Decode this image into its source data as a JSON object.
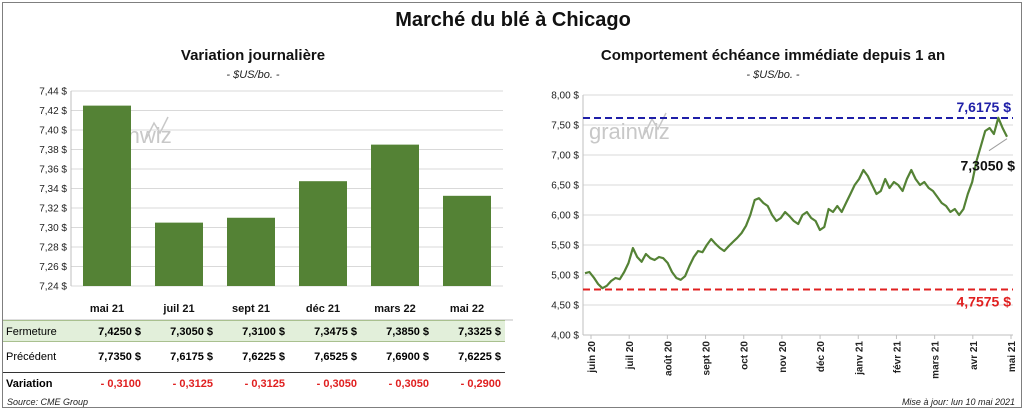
{
  "title": "Marché du blé à Chicago",
  "left_panel": {
    "title": "Variation journalière",
    "unit": "- $US/bo. -"
  },
  "right_panel": {
    "title": "Comportement  échéance immédiate depuis 1 an",
    "unit": "- $US/bo. -"
  },
  "watermark": "grainwiz",
  "table": {
    "rows": [
      {
        "label": "Fermeture",
        "values": [
          "7,4250 $",
          "7,3050 $",
          "7,3100 $",
          "7,3475 $",
          "7,3850 $",
          "7,3325 $"
        ]
      },
      {
        "label": "Précédent",
        "values": [
          "7,7350 $",
          "7,6175 $",
          "7,6225 $",
          "7,6525 $",
          "7,6900 $",
          "7,6225 $"
        ]
      },
      {
        "label": "Variation",
        "values": [
          "- 0,3100",
          "- 0,3125",
          "- 0,3125",
          "- 0,3050",
          "- 0,3050",
          "- 0,2900"
        ]
      }
    ]
  },
  "footer": {
    "source": "Source: CME Group",
    "update": "Mise à jour: lun 10 mai 2021"
  },
  "colors": {
    "bar": "#548235",
    "line": "#548235",
    "max_line": "#1f1fa8",
    "min_line": "#e02020",
    "negative": "#e02020",
    "row_highlight": "#e2efda"
  },
  "chart_data": [
    {
      "type": "bar",
      "categories": [
        "mai 21",
        "juil 21",
        "sept 21",
        "déc 21",
        "mars 22",
        "mai 22"
      ],
      "values": [
        7.425,
        7.305,
        7.31,
        7.3475,
        7.385,
        7.3325
      ],
      "ylim": [
        7.24,
        7.44
      ],
      "yticks": [
        "7,24 $",
        "7,26 $",
        "7,28 $",
        "7,30 $",
        "7,32 $",
        "7,34 $",
        "7,36 $",
        "7,38 $",
        "7,40 $",
        "7,42 $",
        "7,44 $"
      ],
      "grid": true
    },
    {
      "type": "line",
      "x_labels": [
        "juin 20",
        "juil 20",
        "août 20",
        "sept 20",
        "oct 20",
        "nov 20",
        "déc 20",
        "janv 21",
        "févr 21",
        "mars 21",
        "avr 21",
        "mai 21"
      ],
      "ylim": [
        4.0,
        8.0
      ],
      "yticks": [
        "4,00 $",
        "4,50 $",
        "5,00 $",
        "5,50 $",
        "6,00 $",
        "6,50 $",
        "7,00 $",
        "7,50 $",
        "8,00 $"
      ],
      "max_value": 7.6175,
      "max_label": "7,6175 $",
      "min_value": 4.7575,
      "min_label": "4,7575 $",
      "last_label": "7,3050 $",
      "series": [
        {
          "values": [
            5.03,
            5.05,
            4.96,
            4.85,
            4.78,
            4.82,
            4.9,
            4.95,
            4.93,
            5.05,
            5.2,
            5.45,
            5.3,
            5.22,
            5.35,
            5.28,
            5.25,
            5.3,
            5.28,
            5.2,
            5.05,
            4.95,
            4.92,
            4.98,
            5.15,
            5.3,
            5.4,
            5.38,
            5.5,
            5.6,
            5.52,
            5.45,
            5.4,
            5.48,
            5.55,
            5.62,
            5.7,
            5.82,
            6.0,
            6.25,
            6.28,
            6.2,
            6.15,
            6.0,
            5.9,
            5.95,
            6.05,
            5.98,
            5.9,
            5.85,
            6.0,
            6.05,
            5.95,
            5.9,
            5.75,
            5.8,
            6.1,
            6.05,
            6.15,
            6.05,
            6.2,
            6.35,
            6.5,
            6.6,
            6.75,
            6.65,
            6.5,
            6.35,
            6.4,
            6.6,
            6.45,
            6.55,
            6.5,
            6.4,
            6.6,
            6.75,
            6.6,
            6.5,
            6.55,
            6.45,
            6.4,
            6.3,
            6.2,
            6.15,
            6.05,
            6.1,
            6.0,
            6.1,
            6.35,
            6.55,
            6.9,
            7.15,
            7.4,
            7.45,
            7.35,
            7.62,
            7.45,
            7.305
          ]
        }
      ]
    }
  ]
}
